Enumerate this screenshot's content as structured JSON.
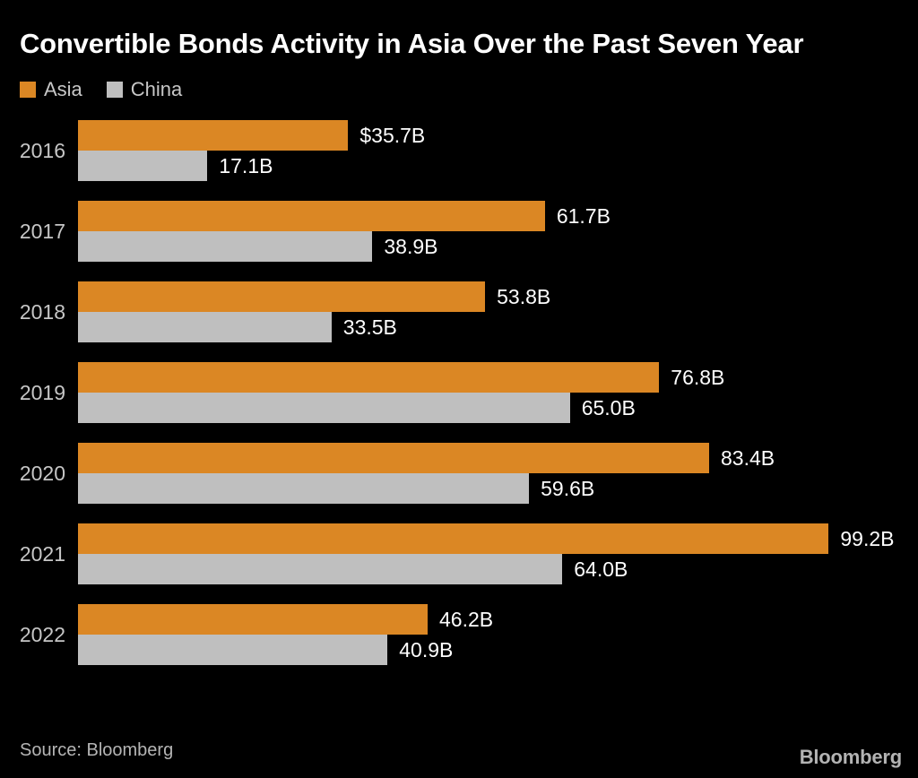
{
  "chart_data": {
    "type": "bar",
    "orientation": "horizontal",
    "title": "Convertible Bonds Activity in Asia Over the Past Seven Year",
    "categories": [
      "2016",
      "2017",
      "2018",
      "2019",
      "2020",
      "2021",
      "2022"
    ],
    "series": [
      {
        "name": "Asia",
        "color": "#DB8724",
        "values": [
          35.7,
          61.7,
          53.8,
          76.8,
          83.4,
          99.2,
          46.2
        ],
        "labels": [
          "$35.7B",
          "61.7B",
          "53.8B",
          "76.8B",
          "83.4B",
          "99.2B",
          "46.2B"
        ]
      },
      {
        "name": "China",
        "color": "#BFBFBF",
        "values": [
          17.1,
          38.9,
          33.5,
          65.0,
          59.6,
          64.0,
          40.9
        ],
        "labels": [
          "17.1B",
          "38.9B",
          "33.5B",
          "65.0B",
          "59.6B",
          "64.0B",
          "40.9B"
        ]
      }
    ],
    "xlim": [
      0,
      111
    ],
    "grid": false,
    "legend_position": "top-left",
    "background_color": "#000000",
    "title_color": "#ffffff",
    "value_label_color": "#ffffff",
    "category_label_color": "#c6c6c6",
    "legend_label_color": "#c7c7c7"
  },
  "footer": {
    "source": "Source: Bloomberg",
    "logo": "Bloomberg"
  }
}
